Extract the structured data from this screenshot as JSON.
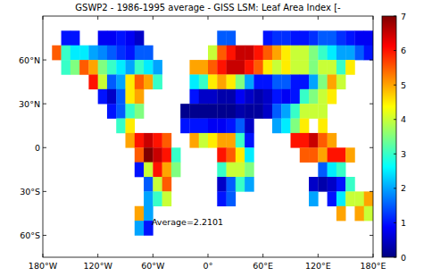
{
  "chart_data": {
    "type": "heatmap",
    "title": "GSWP2 - 1986-1995 average - GISS LSM: Leaf Area Index [-",
    "annotations": [
      "Average=2.2101"
    ],
    "xlim": [
      -180,
      180
    ],
    "ylim": [
      -75,
      90
    ],
    "xticks": [
      {
        "value": -180,
        "label": "180°W"
      },
      {
        "value": -120,
        "label": "120°W"
      },
      {
        "value": -60,
        "label": "60°W"
      },
      {
        "value": 0,
        "label": "0°"
      },
      {
        "value": 60,
        "label": "60°E"
      },
      {
        "value": 120,
        "label": "120°E"
      },
      {
        "value": 180,
        "label": "180°E"
      }
    ],
    "yticks": [
      {
        "value": -60,
        "label": "60°S"
      },
      {
        "value": -30,
        "label": "30°S"
      },
      0,
      {
        "value": 30,
        "label": "30°N"
      },
      {
        "value": 60,
        "label": "60°N"
      }
    ],
    "lat_edges": [
      90,
      80,
      70,
      60,
      50,
      40,
      30,
      20,
      10,
      0,
      -10,
      -20,
      -30,
      -40,
      -50,
      -60
    ],
    "lon_edges": [
      -180,
      -170,
      -160,
      -150,
      -140,
      -130,
      -120,
      -110,
      -100,
      -90,
      -80,
      -70,
      -60,
      -50,
      -40,
      -30,
      -20,
      -10,
      0,
      10,
      20,
      30,
      40,
      50,
      60,
      70,
      80,
      90,
      100,
      110,
      120,
      130,
      140,
      150,
      160,
      170,
      180
    ],
    "cells": [
      [
        null,
        null,
        null,
        null,
        null,
        null,
        null,
        null,
        null,
        null,
        null,
        null,
        null,
        null,
        null,
        null,
        null,
        null,
        null,
        null,
        null,
        null,
        null,
        null,
        null,
        null,
        null,
        null,
        null,
        null,
        null,
        null,
        null,
        null,
        null,
        null
      ],
      [
        null,
        null,
        1.0,
        1.0,
        null,
        null,
        0.8,
        0.8,
        1.0,
        0.8,
        0.5,
        null,
        null,
        null,
        null,
        null,
        null,
        null,
        null,
        1.5,
        1.5,
        null,
        null,
        null,
        1.0,
        1.2,
        1.2,
        1.0,
        1.0,
        1.2,
        1.5,
        1.5,
        1.2,
        1.0,
        0.8,
        0.8
      ],
      [
        null,
        5.5,
        3.0,
        2.5,
        2.5,
        2.0,
        1.8,
        1.5,
        1.2,
        1.0,
        1.5,
        1.5,
        null,
        null,
        null,
        null,
        null,
        null,
        4.0,
        5.5,
        6.0,
        6.5,
        6.5,
        6.0,
        5.5,
        5.0,
        4.5,
        4.0,
        4.0,
        3.5,
        3.0,
        2.5,
        2.0,
        2.0,
        1.5,
        1.0
      ],
      [
        null,
        null,
        3.0,
        3.5,
        5.5,
        5.0,
        3.5,
        3.0,
        2.5,
        2.0,
        3.0,
        2.5,
        2.0,
        null,
        null,
        null,
        5.0,
        5.0,
        5.5,
        6.0,
        6.5,
        6.5,
        6.0,
        5.5,
        4.5,
        4.0,
        4.5,
        4.0,
        4.0,
        3.5,
        4.0,
        4.0,
        3.0,
        4.5,
        null,
        null
      ],
      [
        null,
        null,
        null,
        null,
        null,
        6.0,
        4.0,
        1.5,
        2.0,
        4.5,
        5.5,
        5.0,
        3.0,
        null,
        null,
        null,
        2.5,
        3.0,
        4.5,
        5.0,
        4.5,
        3.5,
        2.0,
        1.0,
        1.0,
        1.5,
        1.5,
        1.0,
        1.0,
        2.0,
        3.5,
        5.0,
        4.0,
        null,
        null,
        null
      ],
      [
        null,
        null,
        null,
        null,
        null,
        null,
        1.0,
        0.5,
        1.5,
        4.5,
        5.0,
        null,
        null,
        null,
        null,
        null,
        1.0,
        0.5,
        0.5,
        0.3,
        0.3,
        0.8,
        0.5,
        0.3,
        0.5,
        1.0,
        0.8,
        1.0,
        3.0,
        3.5,
        4.0,
        4.5,
        null,
        null,
        null,
        null
      ],
      [
        null,
        null,
        null,
        null,
        null,
        null,
        null,
        1.0,
        1.5,
        3.0,
        3.5,
        null,
        null,
        null,
        null,
        0.1,
        0.1,
        0.1,
        0.1,
        0.1,
        0.1,
        0.3,
        0.2,
        0.2,
        0.5,
        1.5,
        2.0,
        3.0,
        4.0,
        4.0,
        4.0,
        null,
        null,
        null,
        null,
        null
      ],
      [
        null,
        null,
        null,
        null,
        null,
        null,
        null,
        null,
        3.0,
        4.5,
        null,
        null,
        null,
        null,
        null,
        1.0,
        1.0,
        1.0,
        0.8,
        0.8,
        1.0,
        1.5,
        0.5,
        null,
        null,
        2.0,
        2.5,
        3.5,
        4.5,
        null,
        4.5,
        null,
        null,
        null,
        null,
        null
      ],
      [
        null,
        null,
        null,
        null,
        null,
        null,
        null,
        null,
        null,
        5.0,
        6.0,
        6.5,
        6.0,
        5.5,
        null,
        null,
        5.0,
        4.0,
        4.5,
        5.0,
        5.0,
        3.0,
        1.0,
        null,
        null,
        null,
        null,
        6.0,
        6.0,
        6.5,
        5.5,
        5.0,
        null,
        null,
        null,
        null
      ],
      [
        null,
        null,
        null,
        null,
        null,
        null,
        null,
        null,
        null,
        null,
        5.5,
        7.0,
        6.5,
        6.0,
        3.0,
        null,
        null,
        null,
        null,
        6.0,
        5.5,
        4.5,
        2.5,
        null,
        null,
        null,
        null,
        null,
        5.5,
        5.5,
        5.0,
        6.0,
        6.0,
        5.0,
        null,
        null
      ],
      [
        null,
        null,
        null,
        null,
        null,
        null,
        null,
        null,
        null,
        null,
        1.0,
        4.0,
        6.0,
        5.0,
        3.5,
        null,
        null,
        null,
        null,
        3.0,
        4.0,
        4.0,
        3.5,
        null,
        null,
        null,
        null,
        null,
        null,
        null,
        1.5,
        2.5,
        3.0,
        null,
        null,
        null
      ],
      [
        null,
        null,
        null,
        null,
        null,
        null,
        null,
        null,
        null,
        null,
        null,
        1.5,
        4.0,
        5.5,
        null,
        null,
        null,
        null,
        null,
        0.5,
        1.5,
        3.0,
        2.0,
        null,
        null,
        null,
        null,
        null,
        null,
        0.5,
        0.3,
        0.5,
        1.0,
        3.0,
        null,
        null
      ],
      [
        null,
        null,
        null,
        null,
        null,
        null,
        null,
        null,
        null,
        null,
        null,
        2.0,
        3.0,
        4.0,
        null,
        null,
        null,
        null,
        null,
        1.0,
        1.5,
        null,
        null,
        null,
        null,
        null,
        null,
        null,
        null,
        2.0,
        null,
        1.0,
        2.5,
        4.0,
        4.0,
        5.0
      ],
      [
        null,
        null,
        null,
        null,
        null,
        null,
        null,
        null,
        null,
        null,
        5.0,
        2.0,
        null,
        null,
        null,
        null,
        null,
        null,
        null,
        null,
        null,
        null,
        null,
        null,
        null,
        null,
        null,
        null,
        null,
        null,
        null,
        null,
        5.0,
        null,
        5.0,
        4.0
      ],
      [
        null,
        null,
        null,
        null,
        null,
        null,
        null,
        null,
        null,
        null,
        2.0,
        1.0,
        null,
        null,
        null,
        null,
        null,
        null,
        null,
        null,
        null,
        null,
        null,
        null,
        null,
        null,
        null,
        null,
        null,
        null,
        null,
        null,
        null,
        null,
        null,
        null
      ]
    ],
    "colorbar_range": [
      0,
      7
    ],
    "colorbar_ticks": [
      0,
      1,
      2,
      3,
      4,
      5,
      6,
      7
    ]
  }
}
